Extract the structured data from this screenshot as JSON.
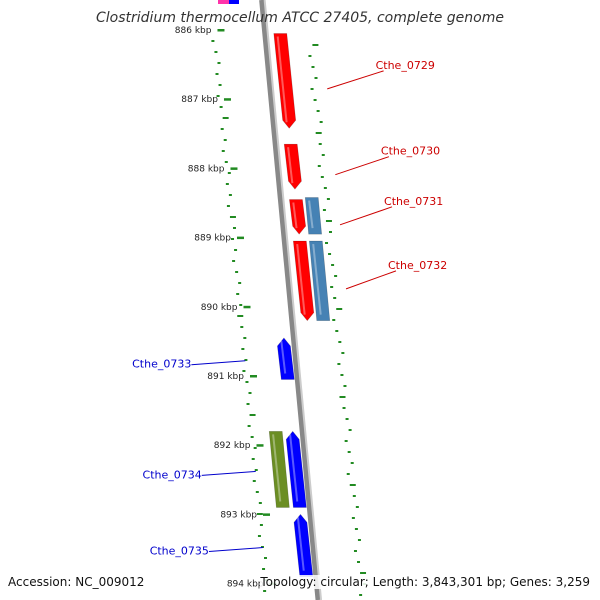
{
  "title": "Clostridium thermocellum ATCC 27405, complete genome",
  "footer": {
    "accession": "Accession: NC_009012",
    "stats": "Topology: circular; Length: 3,843,301 bp; Genes: 3,259"
  },
  "ticks": [
    {
      "label": "886 kbp",
      "kbp": 886
    },
    {
      "label": "887 kbp",
      "kbp": 887
    },
    {
      "label": "888 kbp",
      "kbp": 888
    },
    {
      "label": "889 kbp",
      "kbp": 889
    },
    {
      "label": "890 kbp",
      "kbp": 890
    },
    {
      "label": "891 kbp",
      "kbp": 891
    },
    {
      "label": "892 kbp",
      "kbp": 892
    },
    {
      "label": "893 kbp",
      "kbp": 893
    },
    {
      "label": "894 kbp",
      "kbp": 894
    }
  ],
  "colors": {
    "forward_cds": "#ff0000",
    "reverse_cds": "#0000ff",
    "steelblue_feature": "#4682b4",
    "olive_feature": "#6b8e23",
    "pink_feature": "#ff33aa",
    "backbone": "#888888",
    "gc_dots": "#228b22",
    "label_red": "#cc0000",
    "label_blue": "#0000cc"
  },
  "features": [
    {
      "name": "Cthe_0729",
      "labeled": true,
      "side": "right",
      "color_key": "forward_cds",
      "start_kbp": 886.05,
      "end_kbp": 887.42,
      "strand": "+"
    },
    {
      "name": "Cthe_0730",
      "labeled": true,
      "side": "right",
      "color_key": "forward_cds",
      "start_kbp": 887.65,
      "end_kbp": 888.3,
      "strand": "+"
    },
    {
      "name": "Cthe_0731",
      "labeled": true,
      "side": "right",
      "color_key": "forward_cds",
      "start_kbp": 888.45,
      "end_kbp": 888.95,
      "strand": "+"
    },
    {
      "name": "Cthe_0731",
      "labeled": false,
      "side": "right",
      "color_key": "steelblue_feature",
      "start_kbp": 888.42,
      "end_kbp": 888.95,
      "strand": "none"
    },
    {
      "name": "Cthe_0732",
      "labeled": true,
      "side": "right",
      "color_key": "forward_cds",
      "start_kbp": 889.05,
      "end_kbp": 890.2,
      "strand": "+"
    },
    {
      "name": "Cthe_0732",
      "labeled": false,
      "side": "right",
      "color_key": "steelblue_feature",
      "start_kbp": 889.05,
      "end_kbp": 890.2,
      "strand": "none"
    },
    {
      "name": "Cthe_0733",
      "labeled": true,
      "side": "left",
      "color_key": "reverse_cds",
      "start_kbp": 890.45,
      "end_kbp": 891.05,
      "strand": "-"
    },
    {
      "name": "Cthe_0734",
      "labeled": true,
      "side": "left",
      "color_key": "reverse_cds",
      "start_kbp": 891.8,
      "end_kbp": 892.9,
      "strand": "-"
    },
    {
      "name": "Cthe_0734",
      "labeled": false,
      "side": "left",
      "color_key": "olive_feature",
      "start_kbp": 891.8,
      "end_kbp": 892.9,
      "strand": "none"
    },
    {
      "name": "Cthe_0735",
      "labeled": true,
      "side": "left",
      "color_key": "reverse_cds",
      "start_kbp": 893.0,
      "end_kbp": 893.9,
      "strand": "-"
    }
  ]
}
